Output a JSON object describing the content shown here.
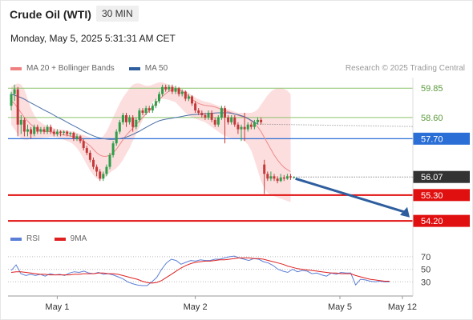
{
  "header": {
    "instrument": "Crude Oil (WTI)",
    "timeframe": "30 MIN",
    "datetime": "Monday, May 5, 2025 5:31:31 AM CET"
  },
  "legend": {
    "items": [
      {
        "label": "MA 20 + Bollinger Bands",
        "color": "#f08080"
      },
      {
        "label": "MA 50",
        "color": "#2e5e9e"
      }
    ],
    "credit": "Research © 2025 Trading Central"
  },
  "rsi_legend": {
    "items": [
      {
        "label": "RSI",
        "color": "#5b7fd6"
      },
      {
        "label": "9MA",
        "color": "#e02020"
      }
    ]
  },
  "chart_data": {
    "type": "line",
    "subtype": "candlestick-with-levels",
    "price_axis": {
      "min": 54.0,
      "max": 60.3,
      "levels": [
        {
          "value": 59.85,
          "label": "59.85",
          "style": "resistance-green",
          "color": "#8ac46b"
        },
        {
          "value": 58.6,
          "label": "58.60",
          "style": "resistance-green",
          "color": "#8ac46b"
        },
        {
          "value": 57.7,
          "label": "57.70",
          "style": "pivot-blue",
          "color": "#2b6fd6"
        },
        {
          "value": 56.07,
          "label": "56.07",
          "style": "last-price",
          "color": "#333333"
        },
        {
          "value": 55.3,
          "label": "55.30",
          "style": "support-red",
          "color": "#e01010"
        },
        {
          "value": 54.2,
          "label": "54.20",
          "style": "support-red",
          "color": "#e01010"
        }
      ]
    },
    "x_axis": {
      "labels": [
        "May 1",
        "May 2",
        "May 5",
        "May 12"
      ],
      "label_bars": [
        14,
        56,
        100,
        119
      ]
    },
    "ma20": [
      59.3,
      59.2,
      59.0,
      58.8,
      58.6,
      58.45,
      58.3,
      58.2,
      58.1,
      58.05,
      58.0,
      58.0,
      58.0,
      57.95,
      57.9,
      57.9,
      57.85,
      57.85,
      57.8,
      57.8,
      57.75,
      57.7,
      57.6,
      57.5,
      57.4,
      57.25,
      57.1,
      57.0,
      56.95,
      56.95,
      57.0,
      57.1,
      57.25,
      57.45,
      57.65,
      57.85,
      58.0,
      58.15,
      58.3,
      58.45,
      58.6,
      58.75,
      58.9,
      59.05,
      59.2,
      59.35,
      59.5,
      59.62,
      59.72,
      59.78,
      59.8,
      59.78,
      59.72,
      59.62,
      59.5,
      59.38,
      59.28,
      59.2,
      59.15,
      59.12,
      59.1,
      59.08,
      59.05,
      59.0,
      58.95,
      58.9,
      58.85,
      58.8,
      58.75,
      58.7,
      58.65,
      58.6,
      58.55,
      58.45,
      58.35,
      58.2,
      58.0,
      57.75,
      57.5,
      57.25,
      57.0,
      56.8,
      56.62,
      56.48,
      56.38,
      56.3
    ],
    "bb_upper": [
      59.9,
      60.0,
      60.05,
      60.0,
      59.8,
      59.4,
      59.0,
      58.7,
      58.5,
      58.4,
      58.3,
      58.25,
      58.2,
      58.15,
      58.1,
      58.1,
      58.08,
      58.05,
      58.0,
      58.0,
      57.95,
      57.9,
      57.85,
      57.8,
      57.75,
      57.7,
      57.7,
      57.7,
      57.8,
      58.0,
      58.3,
      58.6,
      58.9,
      59.2,
      59.45,
      59.65,
      59.85,
      60.0,
      60.05,
      60.05,
      60.0,
      59.95,
      59.95,
      60.0,
      60.05,
      60.1,
      60.1,
      60.05,
      60.0,
      59.95,
      59.9,
      59.85,
      59.8,
      59.75,
      59.65,
      59.55,
      59.45,
      59.38,
      59.32,
      59.28,
      59.25,
      59.2,
      59.15,
      59.1,
      59.05,
      59.0,
      58.95,
      58.9,
      58.85,
      58.8,
      58.8,
      58.8,
      58.8,
      58.8,
      58.85,
      58.95,
      59.15,
      59.35,
      59.55,
      59.7,
      59.8,
      59.85,
      59.85,
      59.82,
      59.75,
      59.6
    ],
    "bb_lower": [
      58.3,
      58.1,
      57.9,
      57.7,
      57.65,
      57.65,
      57.7,
      57.7,
      57.72,
      57.72,
      57.75,
      57.75,
      57.78,
      57.78,
      57.75,
      57.7,
      57.65,
      57.6,
      57.55,
      57.45,
      57.3,
      57.1,
      56.85,
      56.6,
      56.35,
      56.15,
      56.0,
      55.95,
      56.0,
      56.1,
      56.25,
      56.35,
      56.45,
      56.6,
      56.8,
      57.05,
      57.3,
      57.6,
      57.9,
      58.2,
      58.5,
      58.8,
      59.05,
      59.25,
      59.35,
      59.4,
      59.4,
      59.38,
      59.35,
      59.3,
      59.25,
      59.1,
      58.95,
      58.8,
      58.7,
      58.6,
      58.55,
      58.5,
      58.45,
      58.4,
      58.3,
      58.2,
      58.1,
      58.0,
      57.9,
      57.82,
      57.76,
      57.72,
      57.7,
      57.68,
      57.66,
      57.6,
      57.45,
      57.2,
      56.8,
      56.35,
      55.9,
      55.6,
      55.4,
      55.3,
      55.25,
      55.2,
      55.15,
      55.1,
      55.05,
      55.0
    ],
    "ma50": [
      59.6,
      59.55,
      59.5,
      59.45,
      59.38,
      59.3,
      59.22,
      59.15,
      59.07,
      59.0,
      58.92,
      58.85,
      58.78,
      58.7,
      58.62,
      58.55,
      58.48,
      58.4,
      58.32,
      58.25,
      58.18,
      58.1,
      58.02,
      57.95,
      57.88,
      57.82,
      57.77,
      57.73,
      57.7,
      57.68,
      57.67,
      57.67,
      57.68,
      57.7,
      57.73,
      57.77,
      57.82,
      57.88,
      57.95,
      58.02,
      58.1,
      58.18,
      58.26,
      58.33,
      58.4,
      58.46,
      58.5,
      58.53,
      58.55,
      58.57,
      58.6,
      58.62,
      58.65,
      58.68,
      58.7,
      58.72,
      58.73,
      58.74,
      58.75,
      58.76,
      58.77,
      58.78,
      58.79,
      58.8,
      58.8,
      58.8,
      58.8,
      58.78,
      58.75,
      58.72,
      58.68,
      58.63,
      58.56,
      58.48,
      58.4,
      58.32
    ],
    "rsi_axis": {
      "min": 10,
      "max": 80,
      "levels": [
        30,
        50,
        70
      ],
      "labels": [
        "30",
        "50",
        "70"
      ]
    },
    "rsi": [
      48,
      57,
      43,
      40,
      42,
      40,
      42,
      39,
      43,
      41,
      42,
      40,
      44,
      46,
      45,
      47,
      44,
      43,
      45,
      42,
      43,
      41,
      38,
      35,
      30,
      27,
      25,
      24,
      24,
      30,
      37,
      50,
      60,
      66,
      64,
      58,
      61,
      64,
      63,
      65,
      64,
      64,
      66,
      66,
      68,
      70,
      71,
      68,
      66,
      64,
      67,
      66,
      62,
      60,
      56,
      50,
      47,
      45,
      50,
      46,
      48,
      47,
      43,
      44,
      41,
      39,
      44,
      42,
      45,
      44,
      44,
      25,
      34,
      33,
      31,
      30,
      31,
      30,
      30
    ],
    "rsi_ma": [
      45,
      46,
      46,
      45,
      44,
      43,
      42,
      42,
      41,
      41,
      41,
      41,
      41,
      42,
      42,
      43,
      43,
      43,
      44,
      44,
      43,
      43,
      42,
      40,
      38,
      36,
      34,
      31,
      29,
      28,
      29,
      32,
      37,
      42,
      47,
      52,
      56,
      59,
      61,
      62,
      63,
      63,
      64,
      65,
      65,
      66,
      67,
      68,
      68,
      68,
      67,
      67,
      66,
      64,
      62,
      60,
      58,
      55,
      53,
      51,
      50,
      49,
      48,
      47,
      46,
      45,
      44,
      44,
      43,
      43,
      43,
      40,
      38,
      36,
      34,
      33,
      32,
      31,
      31
    ],
    "candles": [
      [
        59.1,
        59.6,
        59.7,
        58.9
      ],
      [
        59.6,
        59.8,
        60.0,
        59.3
      ],
      [
        59.8,
        58.3,
        59.9,
        57.8
      ],
      [
        58.3,
        58.5,
        58.7,
        57.9
      ],
      [
        58.5,
        58.0,
        58.6,
        57.8
      ],
      [
        58.0,
        58.1,
        58.3,
        57.8
      ],
      [
        58.1,
        57.9,
        58.2,
        57.7
      ],
      [
        57.9,
        58.2,
        58.3,
        57.8
      ],
      [
        58.2,
        58.0,
        58.3,
        57.9
      ],
      [
        58.0,
        58.1,
        58.2,
        57.9
      ],
      [
        58.1,
        58.0,
        58.2,
        57.9
      ],
      [
        58.0,
        58.2,
        58.3,
        57.9
      ],
      [
        58.2,
        58.0,
        58.3,
        57.9
      ],
      [
        58.0,
        57.9,
        58.1,
        57.8
      ],
      [
        57.9,
        58.0,
        58.1,
        57.8
      ],
      [
        58.0,
        57.95,
        58.05,
        57.8
      ],
      [
        57.95,
        58.0,
        58.05,
        57.85
      ],
      [
        58.0,
        57.9,
        58.05,
        57.8
      ],
      [
        57.9,
        57.95,
        58.0,
        57.8
      ],
      [
        57.95,
        57.7,
        58.0,
        57.6
      ],
      [
        57.7,
        57.8,
        57.9,
        57.6
      ],
      [
        57.8,
        57.6,
        57.85,
        57.5
      ],
      [
        57.6,
        57.3,
        57.7,
        57.2
      ],
      [
        57.3,
        57.1,
        57.4,
        57.0
      ],
      [
        57.1,
        56.8,
        57.2,
        56.7
      ],
      [
        56.8,
        56.5,
        56.9,
        56.4
      ],
      [
        56.5,
        56.3,
        56.6,
        56.1
      ],
      [
        56.3,
        56.0,
        56.4,
        55.9
      ],
      [
        56.0,
        56.2,
        56.3,
        55.9
      ],
      [
        56.2,
        56.5,
        56.6,
        56.1
      ],
      [
        56.5,
        57.0,
        57.1,
        56.4
      ],
      [
        57.0,
        57.5,
        57.6,
        56.9
      ],
      [
        57.5,
        58.0,
        58.1,
        57.4
      ],
      [
        58.0,
        58.4,
        58.5,
        57.9
      ],
      [
        58.4,
        58.7,
        58.8,
        58.3
      ],
      [
        58.7,
        58.4,
        58.8,
        58.2
      ],
      [
        58.4,
        58.6,
        58.7,
        58.3
      ],
      [
        58.6,
        58.2,
        58.7,
        58.0
      ],
      [
        58.2,
        58.5,
        58.6,
        58.1
      ],
      [
        58.5,
        58.9,
        59.0,
        58.4
      ],
      [
        58.9,
        58.8,
        59.0,
        58.7
      ],
      [
        58.8,
        59.0,
        59.1,
        58.7
      ],
      [
        59.0,
        58.9,
        59.1,
        58.8
      ],
      [
        58.9,
        59.1,
        59.2,
        58.8
      ],
      [
        59.1,
        59.3,
        59.4,
        59.0
      ],
      [
        59.3,
        59.6,
        59.7,
        59.2
      ],
      [
        59.6,
        59.9,
        60.0,
        59.5
      ],
      [
        59.9,
        59.8,
        60.0,
        59.7
      ],
      [
        59.8,
        59.9,
        60.0,
        59.7
      ],
      [
        59.9,
        59.7,
        60.0,
        59.6
      ],
      [
        59.7,
        59.85,
        59.95,
        59.6
      ],
      [
        59.85,
        59.6,
        59.9,
        59.5
      ],
      [
        59.6,
        59.7,
        59.8,
        59.5
      ],
      [
        59.7,
        59.4,
        59.75,
        59.3
      ],
      [
        59.4,
        59.5,
        59.6,
        59.3
      ],
      [
        59.5,
        59.2,
        59.55,
        59.1
      ],
      [
        59.2,
        58.9,
        59.3,
        58.8
      ],
      [
        58.9,
        58.8,
        59.0,
        58.7
      ],
      [
        58.8,
        58.7,
        58.9,
        58.6
      ],
      [
        58.7,
        58.6,
        58.8,
        58.5
      ],
      [
        58.6,
        58.8,
        58.9,
        58.5
      ],
      [
        58.8,
        58.5,
        58.9,
        58.4
      ],
      [
        58.5,
        58.3,
        58.6,
        58.2
      ],
      [
        58.3,
        58.6,
        58.7,
        58.2
      ],
      [
        58.6,
        59.0,
        59.1,
        58.5
      ],
      [
        59.0,
        58.6,
        59.1,
        57.5
      ],
      [
        58.6,
        58.4,
        58.7,
        58.3
      ],
      [
        58.4,
        58.6,
        58.7,
        58.3
      ],
      [
        58.6,
        58.3,
        58.7,
        58.2
      ],
      [
        58.3,
        58.1,
        58.4,
        57.9
      ],
      [
        58.1,
        58.2,
        58.3,
        57.6
      ],
      [
        58.2,
        58.1,
        58.8,
        57.6
      ],
      [
        58.1,
        58.3,
        58.4,
        58.0
      ],
      [
        58.3,
        58.2,
        58.4,
        58.1
      ],
      [
        58.2,
        58.4,
        58.5,
        58.1
      ],
      [
        58.4,
        58.5,
        58.6,
        58.3
      ],
      [
        58.5,
        58.4,
        58.6,
        58.3
      ],
      [
        56.6,
        56.2,
        56.8,
        55.35
      ],
      [
        56.2,
        56.0,
        56.3,
        55.9
      ],
      [
        56.0,
        56.1,
        56.3,
        55.9
      ],
      [
        56.1,
        56.0,
        56.2,
        55.9
      ],
      [
        56.0,
        55.9,
        56.1,
        55.8
      ],
      [
        55.9,
        56.05,
        56.2,
        55.85
      ],
      [
        56.05,
        56.0,
        56.15,
        55.9
      ],
      [
        56.0,
        56.1,
        56.2,
        55.95
      ],
      [
        56.1,
        56.05,
        56.2,
        55.95
      ],
      [
        56.05,
        56.07,
        56.1,
        56.0
      ]
    ]
  }
}
